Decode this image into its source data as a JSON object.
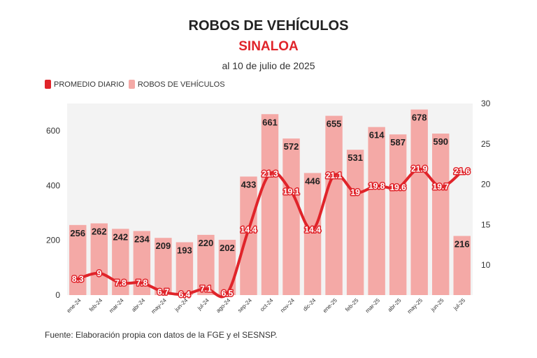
{
  "header": {
    "title": "ROBOS DE VEHÍCULOS",
    "subtitle": "SINALOA",
    "date": "al 10 de julio de 2025"
  },
  "legend": {
    "line_label": "PROMEDIO DIARIO",
    "bar_label": "ROBOS DE VEHÍCULOS"
  },
  "colors": {
    "bar": "#f4a9a6",
    "line": "#e0242a",
    "subtitle": "#e0242a",
    "plot_bg": "#f3f3f3"
  },
  "footer": {
    "source": "Fuente: Elaboración propia con datos de la FGE y el SESNSP."
  },
  "chart_data": {
    "type": "bar",
    "title": "ROBOS DE VEHÍCULOS",
    "categories": [
      "ene-24",
      "feb-24",
      "mar-24",
      "abr-24",
      "may-24",
      "jun-24",
      "jul-24",
      "ago-24",
      "sep-24",
      "oct-24",
      "nov-24",
      "dic-24",
      "ene-25",
      "feb-25",
      "mar-25",
      "abr-25",
      "may-25",
      "jun-25",
      "jul-25"
    ],
    "series": [
      {
        "name": "ROBOS DE VEHÍCULOS",
        "type": "bar",
        "axis": "left",
        "values": [
          256,
          262,
          242,
          234,
          209,
          193,
          220,
          202,
          433,
          661,
          572,
          446,
          655,
          531,
          614,
          587,
          678,
          590,
          216
        ],
        "labels": [
          "256",
          "262",
          "242",
          "234",
          "209",
          "193",
          "220",
          "202",
          "433",
          "661",
          "572",
          "446",
          "655",
          "531",
          "614",
          "587",
          "678",
          "590",
          "216"
        ]
      },
      {
        "name": "PROMEDIO DIARIO",
        "type": "line",
        "axis": "right",
        "values": [
          8.3,
          9,
          7.8,
          7.8,
          6.7,
          6.4,
          7.1,
          6.5,
          14.4,
          21.3,
          19.1,
          14.4,
          21.1,
          19,
          19.8,
          19.6,
          21.9,
          19.7,
          21.6
        ],
        "labels": [
          "8.3",
          "9",
          "7.8",
          "7.8",
          "6.7",
          "6.4",
          "7.1",
          "6.5",
          "14.4",
          "21.3",
          "19.1",
          "14.4",
          "21.1",
          "19",
          "19.8",
          "19.6",
          "21.9",
          "19.7",
          "21.6"
        ]
      }
    ],
    "y_left": {
      "min": 0,
      "max": 700,
      "ticks": [
        0,
        200,
        400,
        600
      ],
      "tick_labels": [
        "0",
        "200",
        "400",
        "600"
      ]
    },
    "y_right": {
      "min": 6.3,
      "max": 30,
      "ticks": [
        10,
        15,
        20,
        25,
        30
      ],
      "tick_labels": [
        "10",
        "15",
        "20",
        "25",
        "30"
      ]
    },
    "legend_position": "top-left",
    "grid": false
  }
}
